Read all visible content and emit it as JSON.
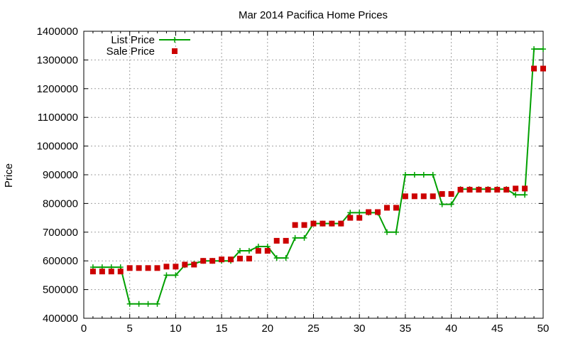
{
  "chart_data": {
    "type": "line",
    "title": "Mar 2014 Pacifica Home Prices",
    "xlabel": "",
    "ylabel": "Price",
    "xlim": [
      0,
      50
    ],
    "ylim": [
      400000,
      1400000
    ],
    "x_ticks": [
      0,
      5,
      10,
      15,
      20,
      25,
      30,
      35,
      40,
      45,
      50
    ],
    "y_ticks": [
      400000,
      500000,
      600000,
      700000,
      800000,
      900000,
      1000000,
      1100000,
      1200000,
      1300000,
      1400000
    ],
    "grid": true,
    "legend_position": "top-left",
    "series": [
      {
        "name": "List Price",
        "style": "line-plus",
        "color": "#00a000",
        "x": [
          1,
          2,
          3,
          4,
          5,
          6,
          7,
          8,
          9,
          10,
          11,
          12,
          13,
          14,
          15,
          16,
          17,
          18,
          19,
          20,
          21,
          22,
          23,
          24,
          25,
          26,
          27,
          28,
          29,
          30,
          31,
          32,
          33,
          34,
          35,
          36,
          37,
          38,
          39,
          40,
          41,
          42,
          43,
          44,
          45,
          46,
          47,
          48,
          49,
          50
        ],
        "values": [
          578000,
          578000,
          578000,
          578000,
          450000,
          450000,
          450000,
          450000,
          550000,
          550000,
          585000,
          590000,
          600000,
          600000,
          600000,
          600000,
          635000,
          635000,
          650000,
          650000,
          610000,
          610000,
          680000,
          680000,
          730000,
          730000,
          730000,
          730000,
          768000,
          768000,
          768000,
          768000,
          700000,
          700000,
          900000,
          900000,
          900000,
          900000,
          797000,
          797000,
          850000,
          850000,
          850000,
          850000,
          850000,
          850000,
          830000,
          830000,
          1338000,
          1338000
        ]
      },
      {
        "name": "Sale Price",
        "style": "square-marker",
        "color": "#cc0000",
        "x": [
          1,
          2,
          3,
          4,
          5,
          6,
          7,
          8,
          9,
          10,
          11,
          12,
          13,
          14,
          15,
          16,
          17,
          18,
          19,
          20,
          21,
          22,
          23,
          24,
          25,
          26,
          27,
          28,
          29,
          30,
          31,
          32,
          33,
          34,
          35,
          36,
          37,
          38,
          39,
          40,
          41,
          42,
          43,
          44,
          45,
          46,
          47,
          48,
          49,
          50
        ],
        "values": [
          563000,
          563000,
          563000,
          563000,
          575000,
          575000,
          575000,
          575000,
          580000,
          580000,
          587000,
          587000,
          600000,
          600000,
          605000,
          605000,
          608000,
          608000,
          635000,
          635000,
          670000,
          670000,
          725000,
          725000,
          730000,
          730000,
          730000,
          730000,
          750000,
          750000,
          770000,
          770000,
          785000,
          785000,
          825000,
          825000,
          825000,
          825000,
          833000,
          833000,
          848000,
          848000,
          848000,
          848000,
          848000,
          848000,
          852000,
          852000,
          1270000,
          1270000
        ]
      }
    ]
  }
}
